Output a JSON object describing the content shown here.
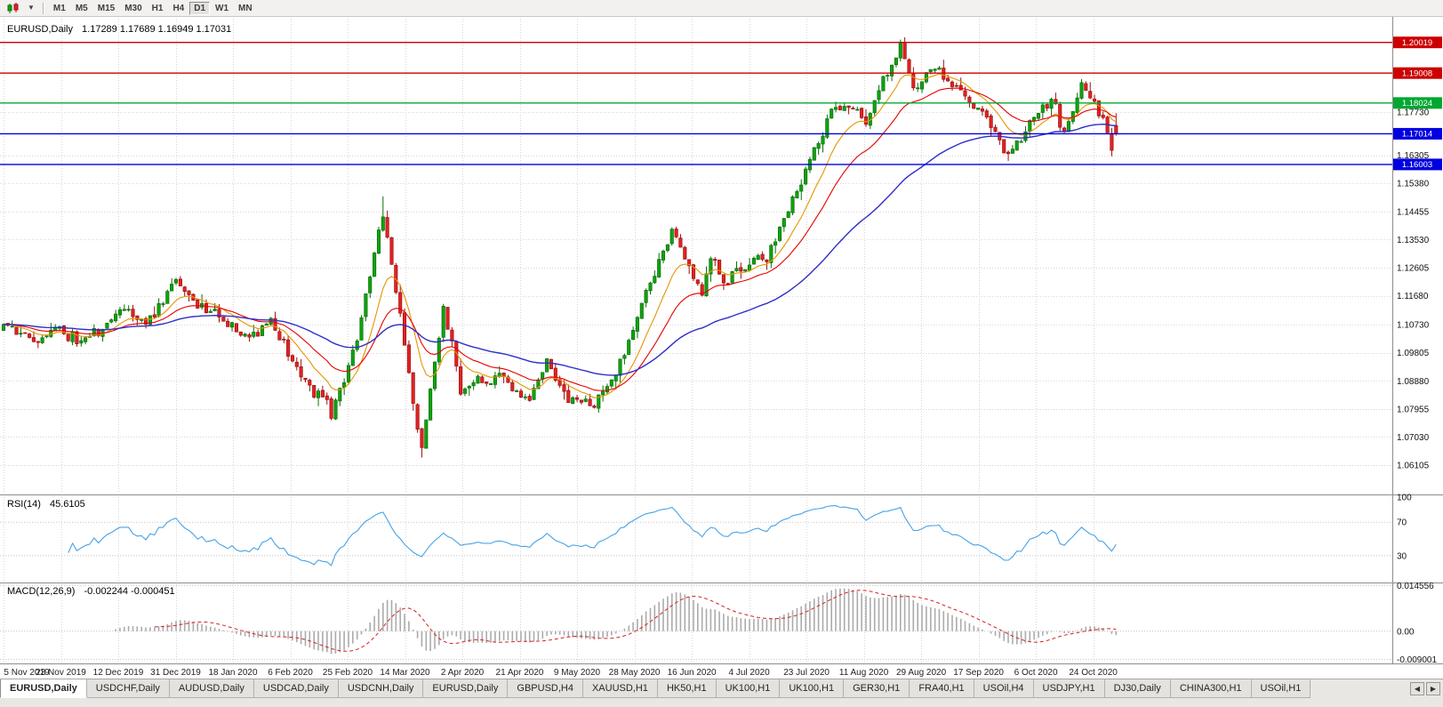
{
  "toolbar": {
    "periods": [
      "M1",
      "M5",
      "M15",
      "M30",
      "H1",
      "H4",
      "D1",
      "W1",
      "MN"
    ],
    "active_period": "D1",
    "dropdown_caret": "▼"
  },
  "main_chart": {
    "symbol_title": "EURUSD,Daily",
    "ohlc_text": "1.17289 1.17689 1.16949 1.17031"
  },
  "rsi_panel": {
    "title": "RSI(14)",
    "value": "45.6105"
  },
  "macd_panel": {
    "title": "MACD(12,26,9)",
    "values": "-0.002244 -0.000451"
  },
  "tabs": {
    "items": [
      "EURUSD,Daily",
      "USDCHF,Daily",
      "AUDUSD,Daily",
      "USDCAD,Daily",
      "USDCNH,Daily",
      "EURUSD,Daily",
      "GBPUSD,H4",
      "XAUUSD,H1",
      "HK50,H1",
      "UK100,H1",
      "UK100,H1",
      "GER30,H1",
      "FRA40,H1",
      "USOil,H4",
      "USDJPY,H1",
      "DJ30,Daily",
      "CHINA300,H1",
      "USOil,H1"
    ],
    "active_index": 0,
    "scroll_left": "◀",
    "scroll_right": "▶"
  },
  "chart_data": {
    "type": "candlestick",
    "symbol": "EURUSD",
    "timeframe": "Daily",
    "bars": 259,
    "price_range": [
      1.052,
      1.208
    ],
    "last_bar": {
      "o": 1.17289,
      "h": 1.17689,
      "l": 1.16949,
      "c": 1.17031
    },
    "anchors": [
      [
        0,
        1.1073
      ],
      [
        7,
        1.1021
      ],
      [
        12,
        1.1058
      ],
      [
        18,
        1.1018
      ],
      [
        23,
        1.106
      ],
      [
        27,
        1.113
      ],
      [
        33,
        1.1078
      ],
      [
        40,
        1.1213
      ],
      [
        47,
        1.1122
      ],
      [
        57,
        1.1024
      ],
      [
        62,
        1.1093
      ],
      [
        67,
        1.0946
      ],
      [
        76,
        1.0785
      ],
      [
        82,
        1.1026
      ],
      [
        88,
        1.145
      ],
      [
        91,
        1.1184
      ],
      [
        97,
        1.0655
      ],
      [
        102,
        1.114
      ],
      [
        106,
        1.0855
      ],
      [
        115,
        1.091
      ],
      [
        122,
        1.0822
      ],
      [
        126,
        1.0955
      ],
      [
        131,
        1.0833
      ],
      [
        136,
        1.0805
      ],
      [
        142,
        1.09
      ],
      [
        147,
        1.1101
      ],
      [
        152,
        1.1289
      ],
      [
        155,
        1.1375
      ],
      [
        162,
        1.1177
      ],
      [
        164,
        1.1306
      ],
      [
        167,
        1.1219
      ],
      [
        170,
        1.125
      ],
      [
        177,
        1.13
      ],
      [
        184,
        1.1525
      ],
      [
        192,
        1.1778
      ],
      [
        197,
        1.1787
      ],
      [
        200,
        1.174
      ],
      [
        204,
        1.188
      ],
      [
        206,
        1.193
      ],
      [
        208,
        1.199
      ],
      [
        211,
        1.186
      ],
      [
        215,
        1.192
      ],
      [
        219,
        1.188
      ],
      [
        223,
        1.184
      ],
      [
        226,
        1.179
      ],
      [
        230,
        1.17
      ],
      [
        233,
        1.163
      ],
      [
        237,
        1.172
      ],
      [
        241,
        1.178
      ],
      [
        243,
        1.182
      ],
      [
        246,
        1.17
      ],
      [
        250,
        1.186
      ],
      [
        253,
        1.1805
      ],
      [
        255,
        1.175
      ],
      [
        257,
        1.165
      ],
      [
        258,
        1.1703
      ]
    ],
    "extremes": [
      [
        88,
        "h",
        1.1495
      ],
      [
        97,
        "l",
        1.0636
      ],
      [
        208,
        "h",
        1.2011
      ],
      [
        233,
        "l",
        1.1612
      ],
      [
        250,
        "h",
        1.1881
      ]
    ],
    "hlines": [
      {
        "price": 1.20019,
        "color": "#cc0000",
        "label": "1.20019"
      },
      {
        "price": 1.19008,
        "color": "#cc0000",
        "label": "1.19008"
      },
      {
        "price": 1.18024,
        "color": "#00a830",
        "label": "1.18024"
      },
      {
        "price": 1.17014,
        "color": "#0000e0",
        "label": "1.17014"
      },
      {
        "price": 1.16003,
        "color": "#0000e0",
        "label": "1.16003"
      }
    ],
    "price_axis": [
      "1.17730",
      "1.16305",
      "1.15380",
      "1.14455",
      "1.13530",
      "1.12605",
      "1.11680",
      "1.10730",
      "1.09805",
      "1.08880",
      "1.07955",
      "1.07030",
      "1.06105"
    ],
    "x_labels": [
      "5 Nov 2019",
      "23 Nov 2019",
      "12 Dec 2019",
      "31 Dec 2019",
      "18 Jan 2020",
      "6 Feb 2020",
      "25 Feb 2020",
      "14 Mar 2020",
      "2 Apr 2020",
      "21 Apr 2020",
      "9 May 2020",
      "28 May 2020",
      "16 Jun 2020",
      "4 Jul 2020",
      "23 Jul 2020",
      "11 Aug 2020",
      "29 Aug 2020",
      "17 Sep 2020",
      "6 Oct 2020",
      "24 Oct 2020"
    ],
    "moving_averages": [
      {
        "period": 10,
        "color": "#e69500"
      },
      {
        "period": 22,
        "color": "#e60000"
      },
      {
        "period": 58,
        "color": "#2e2ec8"
      }
    ],
    "candle_colors": {
      "up_fill": "#0fa30f",
      "up_stroke": "#0a6e0a",
      "down_fill": "#e32222",
      "down_stroke": "#9c1010"
    },
    "rsi": {
      "period": 14,
      "color": "#46a2e8",
      "levels": [
        70,
        30
      ],
      "axis_labels": [
        "100",
        "70",
        "30"
      ],
      "range": [
        0,
        100
      ],
      "current": 45.6105
    },
    "macd": {
      "fast": 12,
      "slow": 26,
      "signal_period": 9,
      "histogram_color": "#ababab",
      "signal_color": "#d82020",
      "axis_labels": [
        "0.014556",
        "0.00",
        "-0.009001"
      ],
      "range": [
        -0.01,
        0.015
      ],
      "current_macd": -0.002244,
      "current_signal": -0.000451
    },
    "grid_color": "#d8d8d8",
    "seed": 11
  }
}
